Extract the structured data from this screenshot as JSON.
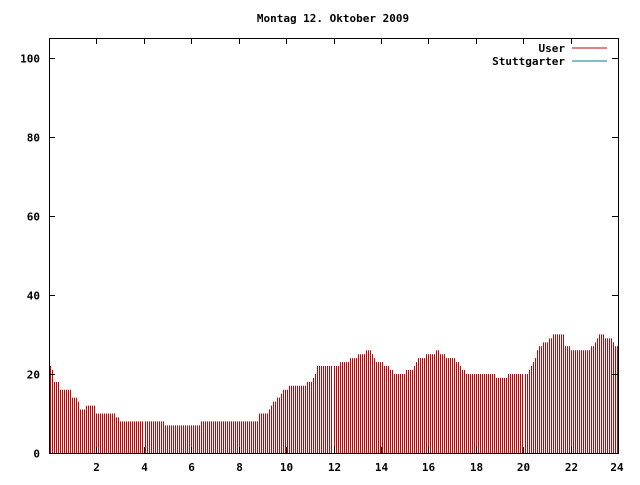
{
  "chart_data": {
    "type": "bar",
    "title": "Montag 12. Oktober 2009",
    "xlabel": "",
    "ylabel": "",
    "xlim": [
      0,
      24
    ],
    "ylim": [
      0,
      105
    ],
    "x_ticks": [
      2,
      4,
      6,
      8,
      10,
      12,
      14,
      16,
      18,
      20,
      22,
      24
    ],
    "y_ticks": [
      0,
      20,
      40,
      60,
      80,
      100
    ],
    "grid": false,
    "legend_position": "top-right",
    "bar_interval_hours": 0.0833333,
    "series": [
      {
        "name": "User",
        "color": "#cc0000",
        "values": [
          22,
          21,
          18,
          18,
          18,
          16,
          16,
          16,
          16,
          16,
          16,
          14,
          14,
          14,
          13,
          11,
          11,
          11,
          12,
          12,
          12,
          12,
          12,
          10,
          10,
          10,
          10,
          10,
          10,
          10,
          10,
          10,
          10,
          9,
          9,
          8,
          8,
          8,
          8,
          8,
          8,
          8,
          8,
          8,
          8,
          8,
          8,
          8,
          8,
          8,
          8,
          8,
          8,
          8,
          8,
          8,
          8,
          7,
          7,
          7,
          7,
          7,
          7,
          7,
          7,
          7,
          7,
          7,
          7,
          7,
          7,
          7,
          7,
          7,
          7,
          8,
          8,
          8,
          8,
          8,
          8,
          8,
          8,
          8,
          8,
          8,
          8,
          8,
          8,
          8,
          8,
          8,
          8,
          8,
          8,
          8,
          8,
          8,
          8,
          8,
          8,
          8,
          8,
          8,
          10,
          10,
          10,
          10,
          10,
          11,
          12,
          13,
          13,
          14,
          14,
          15,
          16,
          16,
          16,
          17,
          17,
          17,
          17,
          17,
          17,
          17,
          17,
          17,
          18,
          18,
          18,
          19,
          20,
          22,
          22,
          22,
          22,
          22,
          22,
          22,
          22,
          22,
          22,
          22,
          23,
          23,
          23,
          23,
          23,
          24,
          24,
          24,
          24,
          25,
          25,
          25,
          25,
          26,
          26,
          26,
          25,
          24,
          23,
          23,
          23,
          23,
          22,
          22,
          22,
          21,
          21,
          20,
          20,
          20,
          20,
          20,
          20,
          21,
          21,
          21,
          21,
          22,
          23,
          24,
          24,
          24,
          24,
          25,
          25,
          25,
          25,
          25,
          26,
          26,
          25,
          25,
          25,
          24,
          24,
          24,
          24,
          24,
          23,
          23,
          22,
          21,
          21,
          20,
          20,
          20,
          20,
          20,
          20,
          20,
          20,
          20,
          20,
          20,
          20,
          20,
          20,
          20,
          19,
          19,
          19,
          19,
          19,
          19,
          20,
          20,
          20,
          20,
          20,
          20,
          20,
          20,
          20,
          20,
          21,
          22,
          23,
          24,
          26,
          27,
          27,
          28,
          28,
          28,
          29,
          29,
          30,
          30,
          30,
          30,
          30,
          30,
          27,
          27,
          27,
          26,
          26,
          26,
          26,
          26,
          26,
          26,
          26,
          26,
          26,
          27,
          27,
          28,
          29,
          30,
          30,
          30,
          29,
          29,
          29,
          29,
          28,
          27,
          27
        ]
      },
      {
        "name": "Stuttgarter",
        "color": "#008080",
        "values": []
      }
    ]
  }
}
